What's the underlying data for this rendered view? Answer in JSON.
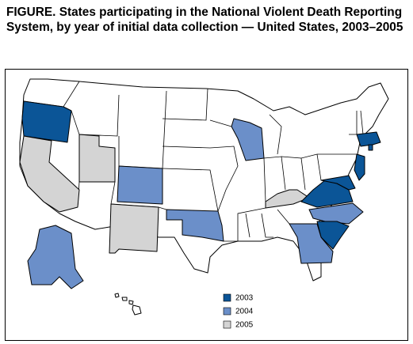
{
  "title": "FIGURE. States participating in the National Violent Death Reporting System, by year of initial data collection — United States, 2003–2005",
  "legend": {
    "items": [
      {
        "label": "2003",
        "color": "#0b5597"
      },
      {
        "label": "2004",
        "color": "#6b8fc9"
      },
      {
        "label": "2005",
        "color": "#d4d4d4"
      }
    ]
  }
}
